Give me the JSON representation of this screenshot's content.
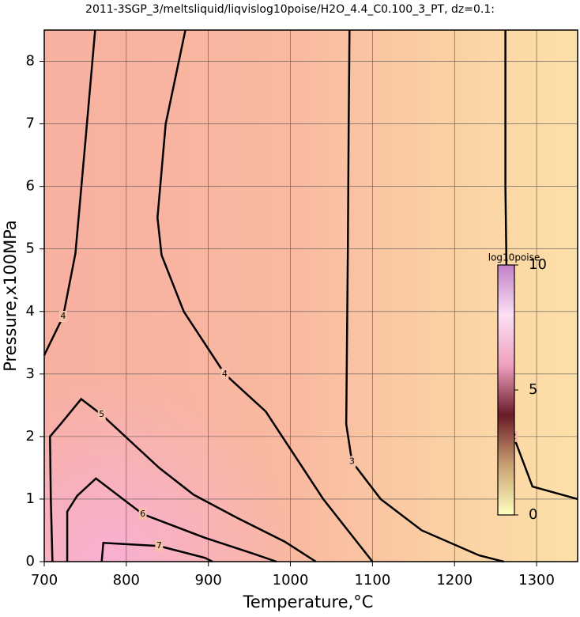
{
  "chart_data": {
    "type": "contour",
    "title": "2011-3SGP_3/meltsliquid/liqvislog10poise/H2O_4.4_C0.100_3_PT, dz=0.1:",
    "xlabel": "Temperature,°C",
    "ylabel": "Pressure,x100MPa",
    "xlim": [
      700,
      1350
    ],
    "ylim": [
      0,
      8.5
    ],
    "xticks": [
      700,
      800,
      900,
      1000,
      1100,
      1200,
      1300
    ],
    "yticks": [
      0,
      1,
      2,
      3,
      4,
      5,
      6,
      7,
      8
    ],
    "grid": true,
    "line_color": "#000000",
    "contours": [
      {
        "level": 2,
        "x": [
          1262,
          1262,
          1264,
          1272,
          1295,
          1350
        ],
        "y": [
          8.5,
          6,
          4,
          2,
          1.2,
          1.0
        ]
      },
      {
        "level": 3,
        "x": [
          1072,
          1071,
          1070,
          1068,
          1075,
          1110,
          1160,
          1230,
          1260
        ],
        "y": [
          8.5,
          7,
          5,
          2.2,
          1.6,
          1.0,
          0.5,
          0.1,
          0
        ]
      },
      {
        "level": 4,
        "x": [
          872,
          848,
          838,
          843,
          870,
          920,
          970,
          1000,
          1040,
          1070,
          1100
        ],
        "y": [
          8.5,
          7,
          5.5,
          4.9,
          4,
          3,
          2.4,
          1.8,
          1.0,
          0.5,
          0
        ]
      },
      {
        "level": 4,
        "x": [
          762,
          750,
          738,
          723,
          704,
          700
        ],
        "y": [
          8.5,
          6.7,
          4.93,
          3.92,
          3.41,
          3.3
        ]
      },
      {
        "level": 5,
        "x": [
          710,
          708,
          707,
          720,
          745,
          770,
          840,
          882,
          935,
          993,
          1031
        ],
        "y": [
          0,
          1,
          2.0,
          2.2,
          2.6,
          2.35,
          1.5,
          1.07,
          0.7,
          0.32,
          0
        ]
      },
      {
        "level": 6,
        "x": [
          728,
          728,
          740,
          763,
          820,
          896,
          954,
          983
        ],
        "y": [
          0,
          0.8,
          1.05,
          1.33,
          0.76,
          0.38,
          0.13,
          0
        ]
      },
      {
        "level": 7,
        "x": [
          770,
          772,
          840,
          896,
          905
        ],
        "y": [
          0,
          0.3,
          0.25,
          0.06,
          0
        ]
      }
    ],
    "colorbar": {
      "label": "log10poise",
      "lim": [
        0,
        10
      ],
      "ticks": [
        0,
        5,
        10
      ],
      "colors": [
        "#ffffc0",
        "#c8a070",
        "#6a1a28",
        "#f0a0c0",
        "#fce0f4",
        "#c080c8"
      ]
    }
  }
}
